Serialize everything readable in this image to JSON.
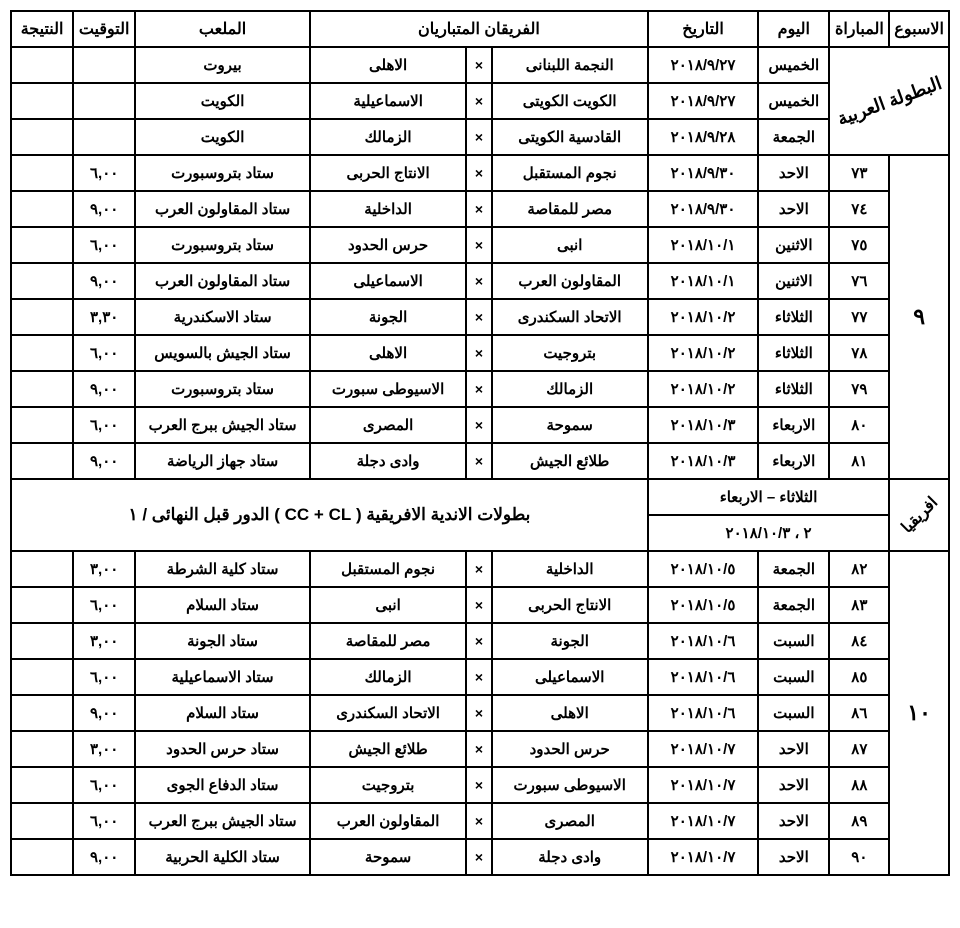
{
  "headers": {
    "week": "الاسبوع",
    "match": "المباراة",
    "day": "اليوم",
    "date": "التاريخ",
    "teams": "الفريقان المتباريان",
    "venue": "الملعب",
    "time": "التوقيت",
    "result": "النتيجة"
  },
  "x_symbol": "×",
  "arab_champ": {
    "label": "البطولة العربية",
    "rows": [
      {
        "day": "الخميس",
        "date": "٢٠١٨/٩/٢٧",
        "home": "النجمة اللبنانى",
        "away": "الاهلى",
        "venue": "بيروت",
        "time": "",
        "result": ""
      },
      {
        "day": "الخميس",
        "date": "٢٠١٨/٩/٢٧",
        "home": "الكويت الكويتى",
        "away": "الاسماعيلية",
        "venue": "الكويت",
        "time": "",
        "result": ""
      },
      {
        "day": "الجمعة",
        "date": "٢٠١٨/٩/٢٨",
        "home": "القادسية الكويتى",
        "away": "الزمالك",
        "venue": "الكويت",
        "time": "",
        "result": ""
      }
    ]
  },
  "week9": {
    "label": "٩",
    "rows": [
      {
        "match": "٧٣",
        "day": "الاحد",
        "date": "٢٠١٨/٩/٣٠",
        "home": "نجوم المستقبل",
        "away": "الانتاج الحربى",
        "venue": "ستاد بتروسبورت",
        "time": "٦,٠٠",
        "result": ""
      },
      {
        "match": "٧٤",
        "day": "الاحد",
        "date": "٢٠١٨/٩/٣٠",
        "home": "مصر للمقاصة",
        "away": "الداخلية",
        "venue": "ستاد المقاولون العرب",
        "time": "٩,٠٠",
        "result": ""
      },
      {
        "match": "٧٥",
        "day": "الاثنين",
        "date": "٢٠١٨/١٠/١",
        "home": "انبى",
        "away": "حرس الحدود",
        "venue": "ستاد بتروسبورت",
        "time": "٦,٠٠",
        "result": ""
      },
      {
        "match": "٧٦",
        "day": "الاثنين",
        "date": "٢٠١٨/١٠/١",
        "home": "المقاولون العرب",
        "away": "الاسماعيلى",
        "venue": "ستاد المقاولون العرب",
        "time": "٩,٠٠",
        "result": ""
      },
      {
        "match": "٧٧",
        "day": "الثلاثاء",
        "date": "٢٠١٨/١٠/٢",
        "home": "الاتحاد السكندرى",
        "away": "الجونة",
        "venue": "ستاد الاسكندرية",
        "time": "٣,٣٠",
        "result": ""
      },
      {
        "match": "٧٨",
        "day": "الثلاثاء",
        "date": "٢٠١٨/١٠/٢",
        "home": "بتروجيت",
        "away": "الاهلى",
        "venue": "ستاد الجيش بالسويس",
        "time": "٦,٠٠",
        "result": ""
      },
      {
        "match": "٧٩",
        "day": "الثلاثاء",
        "date": "٢٠١٨/١٠/٢",
        "home": "الزمالك",
        "away": "الاسيوطى سبورت",
        "venue": "ستاد بتروسبورت",
        "time": "٩,٠٠",
        "result": ""
      },
      {
        "match": "٨٠",
        "day": "الاربعاء",
        "date": "٢٠١٨/١٠/٣",
        "home": "سموحة",
        "away": "المصرى",
        "venue": "ستاد الجيش ببرج العرب",
        "time": "٦,٠٠",
        "result": ""
      },
      {
        "match": "٨١",
        "day": "الاربعاء",
        "date": "٢٠١٨/١٠/٣",
        "home": "طلائع الجيش",
        "away": "وادى دجلة",
        "venue": "ستاد جهاز الرياضة",
        "time": "٩,٠٠",
        "result": ""
      }
    ]
  },
  "africa": {
    "label": "افريقيا",
    "days_line": "الثلاثاء – الاربعاء",
    "date_line": "٢ ، ٢٠١٨/١٠/٣",
    "text": "بطولات الاندية الافريقية  ( CC + CL ) الدور قبل النهائى / ١"
  },
  "week10": {
    "label": "١٠",
    "rows": [
      {
        "match": "٨٢",
        "day": "الجمعة",
        "date": "٢٠١٨/١٠/٥",
        "home": "الداخلية",
        "away": "نجوم المستقبل",
        "venue": "ستاد كلية الشرطة",
        "time": "٣,٠٠",
        "result": ""
      },
      {
        "match": "٨٣",
        "day": "الجمعة",
        "date": "٢٠١٨/١٠/٥",
        "home": "الانتاج الحربى",
        "away": "انبى",
        "venue": "ستاد السلام",
        "time": "٦,٠٠",
        "result": ""
      },
      {
        "match": "٨٤",
        "day": "السبت",
        "date": "٢٠١٨/١٠/٦",
        "home": "الجونة",
        "away": "مصر للمقاصة",
        "venue": "ستاد الجونة",
        "time": "٣,٠٠",
        "result": ""
      },
      {
        "match": "٨٥",
        "day": "السبت",
        "date": "٢٠١٨/١٠/٦",
        "home": "الاسماعيلى",
        "away": "الزمالك",
        "venue": "ستاد الاسماعيلية",
        "time": "٦,٠٠",
        "result": ""
      },
      {
        "match": "٨٦",
        "day": "السبت",
        "date": "٢٠١٨/١٠/٦",
        "home": "الاهلى",
        "away": "الاتحاد السكندرى",
        "venue": "ستاد السلام",
        "time": "٩,٠٠",
        "result": ""
      },
      {
        "match": "٨٧",
        "day": "الاحد",
        "date": "٢٠١٨/١٠/٧",
        "home": "حرس الحدود",
        "away": "طلائع الجيش",
        "venue": "ستاد حرس الحدود",
        "time": "٣,٠٠",
        "result": ""
      },
      {
        "match": "٨٨",
        "day": "الاحد",
        "date": "٢٠١٨/١٠/٧",
        "home": "الاسيوطى سبورت",
        "away": "بتروجيت",
        "venue": "ستاد الدفاع الجوى",
        "time": "٦,٠٠",
        "result": ""
      },
      {
        "match": "٨٩",
        "day": "الاحد",
        "date": "٢٠١٨/١٠/٧",
        "home": "المصرى",
        "away": "المقاولون العرب",
        "venue": "ستاد الجيش ببرج العرب",
        "time": "٦,٠٠",
        "result": ""
      },
      {
        "match": "٩٠",
        "day": "الاحد",
        "date": "٢٠١٨/١٠/٧",
        "home": "وادى دجلة",
        "away": "سموحة",
        "venue": "ستاد الكلية الحربية",
        "time": "٩,٠٠",
        "result": ""
      }
    ]
  }
}
